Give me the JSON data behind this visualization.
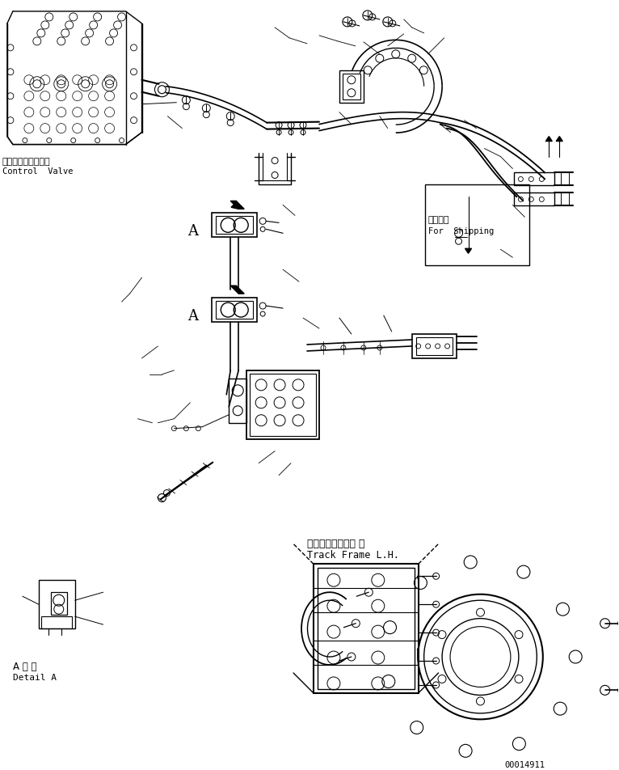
{
  "part_number": "00014911",
  "background_color": "#ffffff",
  "line_color": "#000000",
  "labels": {
    "control_valve_jp": "コントロールバルブ",
    "control_valve_en": "Control  Valve",
    "for_shipping_jp": "運斐部品",
    "for_shipping_en": "For  Shipping",
    "track_frame_jp": "トラックフレーム 左",
    "track_frame_en": "Track Frame L.H.",
    "detail_a_jp": "A 詳 細",
    "detail_a_en": "Detail A"
  },
  "figsize": [
    7.66,
    9.53
  ],
  "dpi": 100
}
